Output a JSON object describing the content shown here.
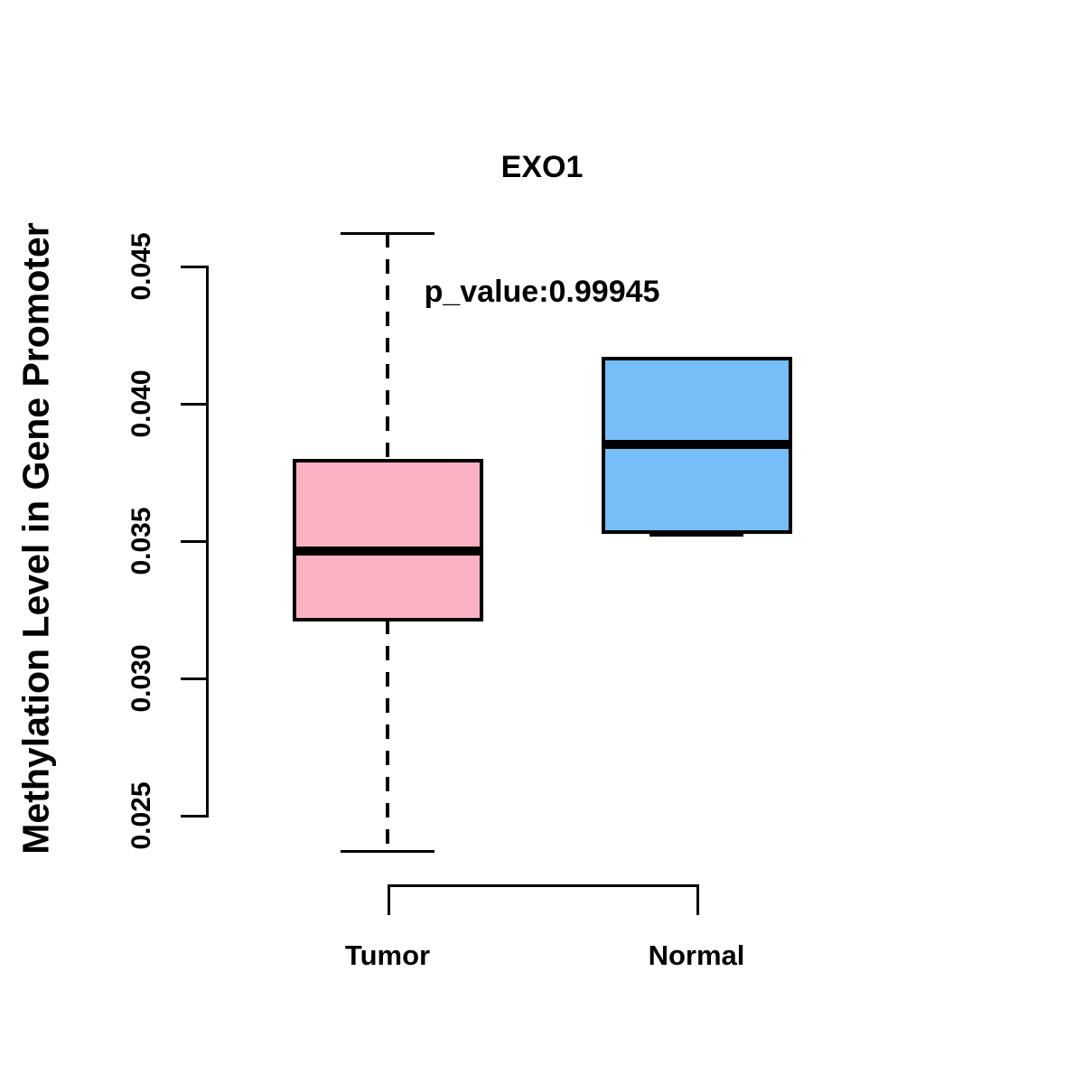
{
  "chart": {
    "title": "EXO1",
    "subtitle": "p_value:0.99945",
    "ylabel": "Methylation Level in Gene Promoter"
  },
  "chart_data": {
    "type": "boxplot",
    "title": "EXO1",
    "subtitle": "p_value:0.99945",
    "xlabel": "",
    "ylabel": "Methylation Level in Gene Promoter",
    "categories": [
      "Tumor",
      "Normal"
    ],
    "ylim": [
      0.025,
      0.045
    ],
    "ytick_values": [
      0.025,
      0.03,
      0.035,
      0.04,
      0.045
    ],
    "ytick_labels": [
      "0.025",
      "0.030",
      "0.035",
      "0.040",
      "0.045"
    ],
    "grid": false,
    "legend_position": "none",
    "series": [
      {
        "name": "Tumor",
        "color": "#FDB2C3",
        "whisker_low": 0.0237,
        "q1": 0.0321,
        "median": 0.0346,
        "q3": 0.0379,
        "whisker_high": 0.0462
      },
      {
        "name": "Normal",
        "color": "#75BEF8",
        "whisker_low": 0.0352,
        "q1": 0.0353,
        "median": 0.0385,
        "q3": 0.0416,
        "whisker_high": 0.0416
      }
    ],
    "colors": {
      "box_border": "#000000",
      "axis": "#000000",
      "text": "#000000",
      "background": "#ffffff"
    }
  }
}
